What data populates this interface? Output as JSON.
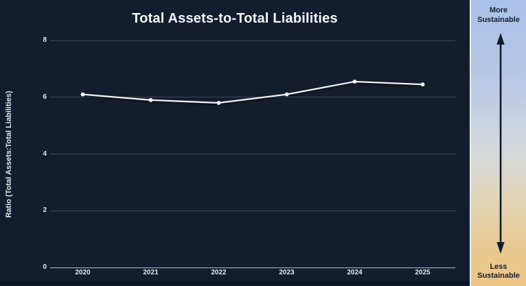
{
  "chart_data": {
    "type": "line",
    "title": "Total Assets-to-Total Liabilities",
    "xlabel": "",
    "ylabel": "Ratio (Total Assets:Total Liabilities)",
    "categories": [
      "2020",
      "2021",
      "2022",
      "2023",
      "2024",
      "2025"
    ],
    "series": [
      {
        "name": "Total Assets-to-Total Liabilities",
        "values": [
          6.1,
          5.9,
          5.8,
          6.1,
          6.55,
          6.45
        ]
      }
    ],
    "ylim": [
      0,
      8
    ],
    "yticks": [
      0,
      2,
      4,
      6,
      8
    ],
    "grid": true,
    "legend_position": "none",
    "line_color": "#f2f3f5",
    "marker_color": "#ffffff",
    "background_color": "#141d2e",
    "gridline_color": "#3d4555",
    "axis_line_color": "#b9bec7",
    "text_color": "#e7e9ec"
  },
  "sidebar": {
    "top_label": "More Sustainable",
    "bottom_label": "Less Sustainable",
    "gradient_top_color": "#a9c0e8",
    "gradient_bottom_color": "#eec786",
    "arrow_color": "#121c2c",
    "label_color": "#16202f"
  }
}
